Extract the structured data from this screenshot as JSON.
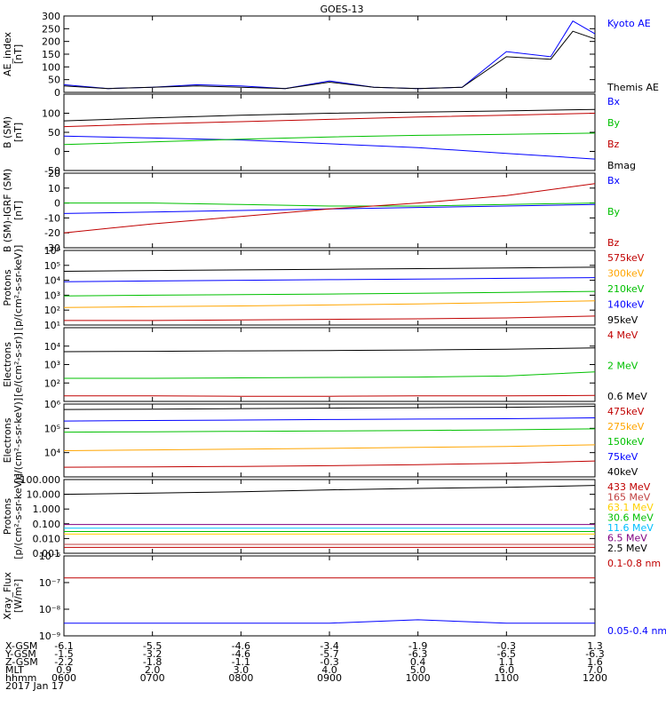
{
  "title": "GOES-13",
  "chart_data": [
    {
      "type": "line",
      "panel": "ae_index",
      "ylabel": "AE_index\n[nT]",
      "ylim": [
        0,
        300
      ],
      "yticks": [
        0,
        50,
        100,
        150,
        200,
        250,
        300
      ],
      "ytick_labels": [
        "0",
        "50",
        "100",
        "150",
        "200",
        "250",
        "300"
      ],
      "x": [
        600,
        630,
        700,
        730,
        800,
        830,
        900,
        930,
        1000,
        1030,
        1100,
        1130,
        1145,
        1200
      ],
      "series": [
        {
          "name": "Kyoto AE",
          "color": "#0000ff",
          "values": [
            30,
            15,
            20,
            30,
            25,
            15,
            45,
            20,
            15,
            20,
            160,
            140,
            280,
            230
          ]
        },
        {
          "name": "Themis AE",
          "color": "#000000",
          "values": [
            25,
            15,
            20,
            25,
            20,
            15,
            40,
            20,
            15,
            20,
            140,
            130,
            240,
            210
          ]
        }
      ]
    },
    {
      "type": "line",
      "panel": "b_sm",
      "ylabel": "B (SM)\n[nT]",
      "ylim": [
        -50,
        150
      ],
      "yticks": [
        -50,
        0,
        50,
        100
      ],
      "ytick_labels": [
        "-50",
        "0",
        "50",
        "100"
      ],
      "x": [
        600,
        700,
        800,
        900,
        1000,
        1100,
        1200
      ],
      "series": [
        {
          "name": "Bx",
          "color": "#0000ff",
          "values": [
            40,
            35,
            30,
            20,
            10,
            -5,
            -20
          ]
        },
        {
          "name": "By",
          "color": "#00c000",
          "values": [
            18,
            25,
            32,
            38,
            42,
            45,
            48
          ]
        },
        {
          "name": "Bz",
          "color": "#c00000",
          "values": [
            65,
            72,
            78,
            84,
            90,
            95,
            100
          ]
        },
        {
          "name": "Bmag",
          "color": "#000000",
          "values": [
            80,
            88,
            95,
            100,
            103,
            106,
            110
          ]
        }
      ]
    },
    {
      "type": "line",
      "panel": "b_minus_igrf",
      "ylabel": "B (SM)-IGRF (SM)\n[nT]",
      "ylim": [
        -30,
        20
      ],
      "yticks": [
        -30,
        -20,
        -10,
        0,
        10,
        20
      ],
      "ytick_labels": [
        "-30",
        "-20",
        "-10",
        "0",
        "10",
        "20"
      ],
      "x": [
        600,
        700,
        800,
        900,
        1000,
        1100,
        1200
      ],
      "series": [
        {
          "name": "Bx",
          "color": "#0000ff",
          "values": [
            -7,
            -6,
            -5,
            -4,
            -3,
            -2,
            -1
          ]
        },
        {
          "name": "By",
          "color": "#00c000",
          "values": [
            0,
            0,
            -1,
            -2,
            -2,
            -1,
            0
          ]
        },
        {
          "name": "Bz",
          "color": "#c00000",
          "values": [
            -20,
            -14,
            -9,
            -4,
            0,
            5,
            13
          ]
        }
      ]
    },
    {
      "type": "line",
      "panel": "protons_low",
      "ylabel": "Protons\n[p/(cm²-s-sr-keV)]",
      "yscale": "log",
      "ylim": [
        10,
        1000000
      ],
      "yticks": [
        10,
        100,
        1000,
        10000,
        100000,
        1000000
      ],
      "ytick_labels": [
        "10¹",
        "10²",
        "10³",
        "10⁴",
        "10⁵",
        "10⁶"
      ],
      "x": [
        600,
        700,
        800,
        900,
        1000,
        1100,
        1200
      ],
      "series": [
        {
          "name": "575keV",
          "color": "#c00000",
          "values": [
            20,
            20,
            22,
            24,
            26,
            30,
            40
          ]
        },
        {
          "name": "300keV",
          "color": "#ffa500",
          "values": [
            150,
            170,
            190,
            220,
            260,
            320,
            420
          ]
        },
        {
          "name": "210keV",
          "color": "#00c000",
          "values": [
            900,
            1000,
            1100,
            1200,
            1350,
            1550,
            1800
          ]
        },
        {
          "name": "140keV",
          "color": "#0000ff",
          "values": [
            8000,
            9000,
            10000,
            11000,
            12000,
            13500,
            15000
          ]
        },
        {
          "name": "95keV",
          "color": "#000000",
          "values": [
            40000,
            45000,
            50000,
            55000,
            60000,
            67000,
            75000
          ]
        }
      ]
    },
    {
      "type": "line",
      "panel": "electrons_mev",
      "ylabel": "Electrons\n[e/(cm²-s-sr)]",
      "yscale": "log",
      "ylim": [
        10,
        100000
      ],
      "yticks": [
        100,
        1000,
        10000
      ],
      "ytick_labels": [
        "10²",
        "10³",
        "10⁴"
      ],
      "x": [
        600,
        700,
        800,
        900,
        1000,
        1100,
        1200
      ],
      "series": [
        {
          "name": "4 MeV",
          "color": "#c00000",
          "values": [
            20,
            20,
            19,
            19,
            20,
            20,
            21
          ]
        },
        {
          "name": "2 MeV",
          "color": "#00c000",
          "values": [
            180,
            180,
            190,
            200,
            210,
            240,
            400
          ]
        },
        {
          "name": "0.6 MeV",
          "color": "#000000",
          "values": [
            5000,
            5200,
            5500,
            5800,
            6200,
            6800,
            8000
          ]
        }
      ]
    },
    {
      "type": "line",
      "panel": "electrons_kev",
      "ylabel": "Electrons\n[e/(cm²-s-sr-keV)]",
      "yscale": "log",
      "ylim": [
        1000,
        1000000
      ],
      "yticks": [
        10000,
        100000,
        1000000
      ],
      "ytick_labels": [
        "10⁴",
        "10⁵",
        "10⁶"
      ],
      "x": [
        600,
        700,
        800,
        900,
        1000,
        1100,
        1200
      ],
      "series": [
        {
          "name": "475keV",
          "color": "#c00000",
          "values": [
            2500,
            2600,
            2700,
            2900,
            3200,
            3600,
            4500
          ]
        },
        {
          "name": "275keV",
          "color": "#ffa500",
          "values": [
            12000,
            13000,
            14000,
            15000,
            16500,
            18000,
            21000
          ]
        },
        {
          "name": "150keV",
          "color": "#00c000",
          "values": [
            70000,
            72000,
            75000,
            78000,
            82000,
            87000,
            95000
          ]
        },
        {
          "name": "75keV",
          "color": "#0000ff",
          "values": [
            200000,
            210000,
            220000,
            230000,
            240000,
            250000,
            270000
          ]
        },
        {
          "name": "40keV",
          "color": "#000000",
          "values": [
            600000,
            620000,
            650000,
            680000,
            710000,
            740000,
            800000
          ]
        }
      ]
    },
    {
      "type": "line",
      "panel": "protons_mev",
      "ylabel": "Protons\n[p/(cm²-s-sr-keV)]",
      "yscale": "log",
      "ylim": [
        0.001,
        100
      ],
      "yticks": [
        0.001,
        0.01,
        0.1,
        1,
        10,
        100
      ],
      "ytick_labels": [
        "0.001",
        "0.010",
        "0.100",
        "1.000",
        "10.000",
        "100.000"
      ],
      "x": [
        600,
        700,
        800,
        900,
        1000,
        1100,
        1200
      ],
      "series": [
        {
          "name": "433 MeV",
          "color": "#c00000",
          "values": [
            0.0025,
            0.0025,
            0.0025,
            0.0025,
            0.0025,
            0.0025,
            0.0025
          ]
        },
        {
          "name": "165 MeV",
          "color": "#c04040",
          "values": [
            0.004,
            0.004,
            0.004,
            0.004,
            0.004,
            0.004,
            0.004
          ]
        },
        {
          "name": "63.1 MeV",
          "color": "#ffd000",
          "values": [
            0.02,
            0.02,
            0.02,
            0.02,
            0.02,
            0.02,
            0.02
          ]
        },
        {
          "name": "30.6 MeV",
          "color": "#00c000",
          "values": [
            0.03,
            0.03,
            0.03,
            0.03,
            0.03,
            0.03,
            0.03
          ]
        },
        {
          "name": "11.6 MeV",
          "color": "#00bfff",
          "values": [
            0.05,
            0.05,
            0.05,
            0.05,
            0.05,
            0.05,
            0.05
          ]
        },
        {
          "name": "6.5 MeV",
          "color": "#800080",
          "values": [
            0.09,
            0.09,
            0.09,
            0.09,
            0.09,
            0.09,
            0.09
          ]
        },
        {
          "name": "2.5 MeV",
          "color": "#000000",
          "values": [
            10,
            12,
            15,
            20,
            25,
            30,
            40
          ]
        }
      ]
    },
    {
      "type": "line",
      "panel": "xray_flux",
      "ylabel": "Xray_Flux\n[W/m²]",
      "yscale": "log",
      "ylim": [
        1e-09,
        1e-06
      ],
      "yticks": [
        1e-09,
        1e-08,
        1e-07,
        1e-06
      ],
      "ytick_labels": [
        "10⁻⁹",
        "10⁻⁸",
        "10⁻⁷",
        "10⁻⁶"
      ],
      "x": [
        600,
        700,
        800,
        900,
        1000,
        1100,
        1200
      ],
      "series": [
        {
          "name": "0.1-0.8 nm",
          "color": "#c00000",
          "values": [
            1.5e-07,
            1.5e-07,
            1.5e-07,
            1.5e-07,
            1.5e-07,
            1.5e-07,
            1.5e-07
          ]
        },
        {
          "name": "0.05-0.4 nm",
          "color": "#0000ff",
          "values": [
            3e-09,
            3e-09,
            3e-09,
            3e-09,
            4e-09,
            3e-09,
            3e-09
          ]
        }
      ]
    }
  ],
  "x_axis": {
    "rows": [
      {
        "label": "X-GSM",
        "values": [
          "-6.1",
          "-5.5",
          "-4.6",
          "-3.4",
          "-1.9",
          "-0.3",
          "1.3"
        ]
      },
      {
        "label": "Y-GSM",
        "values": [
          "-1.5",
          "-3.2",
          "-4.6",
          "-5.7",
          "-6.3",
          "-6.5",
          "-6.3"
        ]
      },
      {
        "label": "Z-GSM",
        "values": [
          "-2.2",
          "-1.8",
          "-1.1",
          "-0.3",
          "0.4",
          "1.1",
          "1.6"
        ]
      },
      {
        "label": "MLT",
        "values": [
          "0.9",
          "2.0",
          "3.0",
          "4.0",
          "5.0",
          "6.0",
          "7.0"
        ]
      },
      {
        "label": "hhmm",
        "values": [
          "0600",
          "0700",
          "0800",
          "0900",
          "1000",
          "1100",
          "1200"
        ]
      }
    ],
    "date": "2017 Jan 17"
  },
  "colors": {
    "axis": "#000000",
    "background": "#ffffff"
  }
}
